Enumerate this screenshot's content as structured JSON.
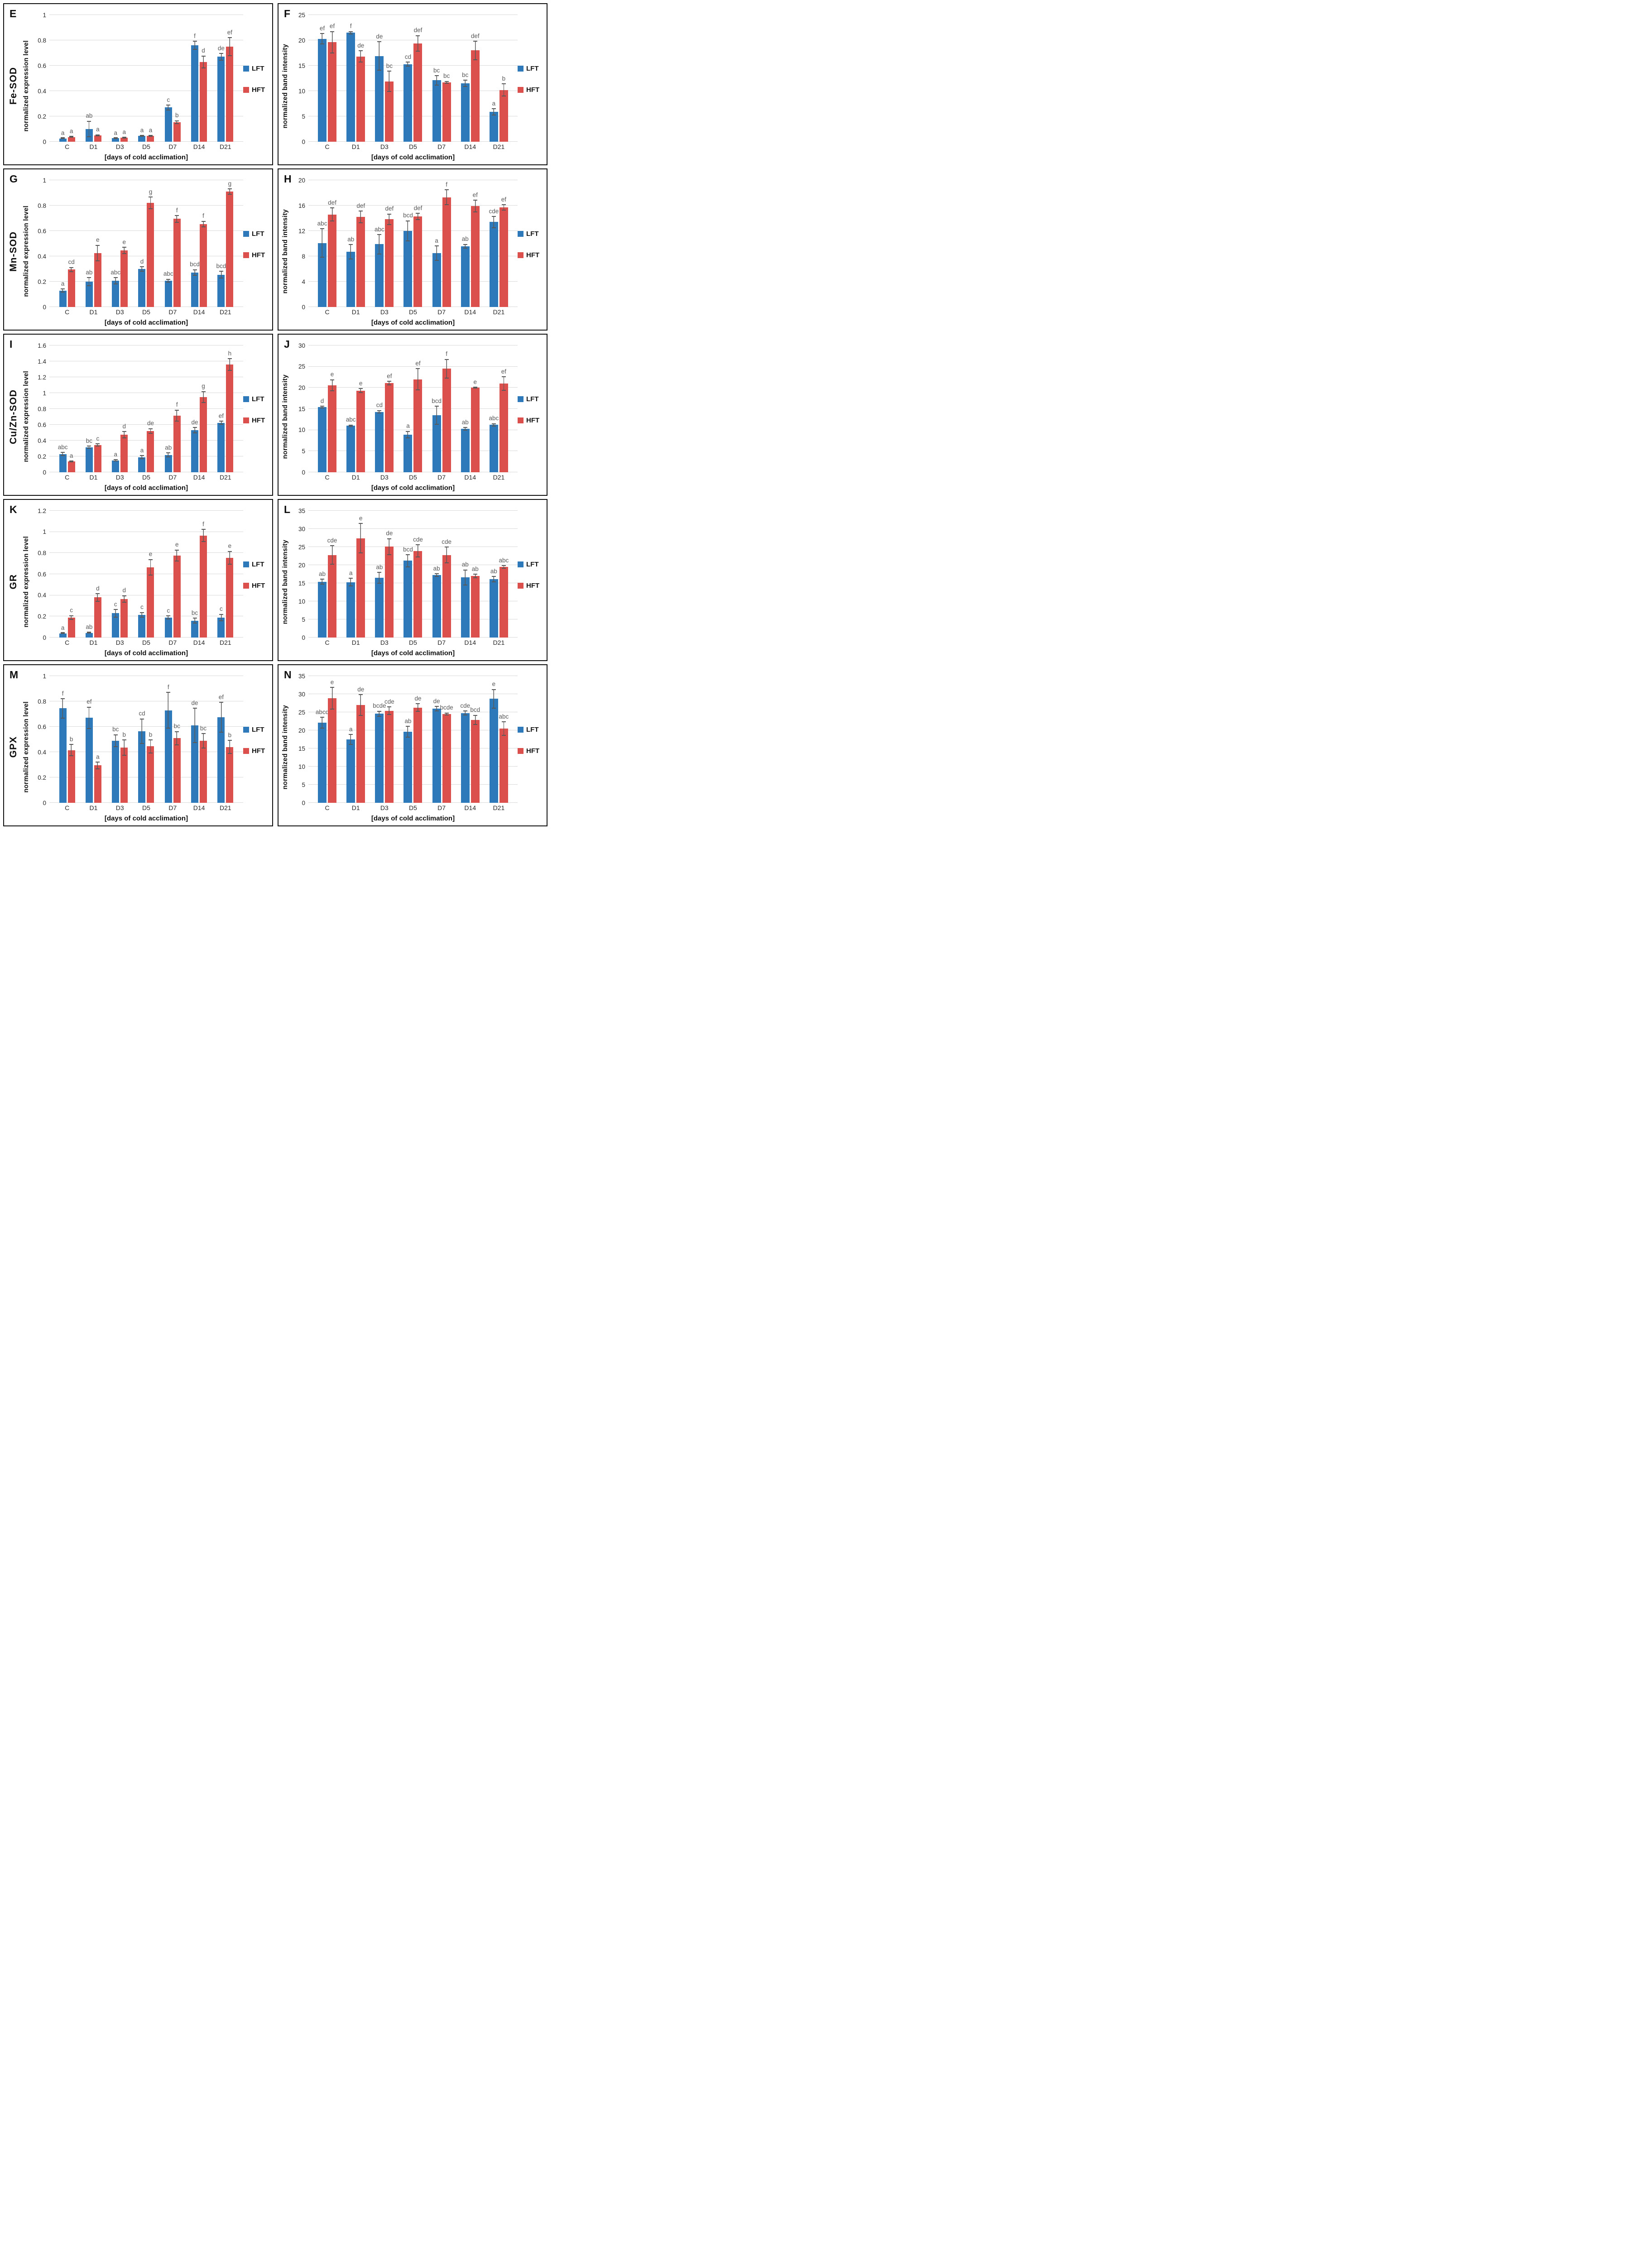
{
  "figure": {
    "x_axis_label": "[days of cold acclimation]",
    "categories": [
      "C",
      "D1",
      "D3",
      "D5",
      "D7",
      "D14",
      "D21"
    ],
    "legend": {
      "lft_label": "LFT",
      "hft_label": "HFT"
    },
    "colors": {
      "lft": "#2E79B9",
      "hft": "#DB4F4C",
      "error_bar": "#595959",
      "gridline": "#D9D9D9",
      "sig_letter": "#595959",
      "tick_text": "#262626"
    }
  },
  "chart_data": [
    {
      "panel": "E",
      "row_label": "Fe-SOD",
      "side": "left",
      "type": "bar",
      "ylabel": "normalized expression level",
      "xlabel": "[days of cold acclimation]",
      "categories": [
        "C",
        "D1",
        "D3",
        "D5",
        "D7",
        "D14",
        "D21"
      ],
      "ylim": [
        0,
        1
      ],
      "yticks": [
        "0",
        "0.2",
        "0.4",
        "0.6",
        "0.8",
        "1"
      ],
      "grid": true,
      "legend_position": "right",
      "series": [
        {
          "name": "LFT",
          "values": [
            0.025,
            0.1,
            0.027,
            0.046,
            0.27,
            0.76,
            0.67
          ],
          "errors": [
            0.005,
            0.065,
            0.005,
            0.005,
            0.022,
            0.035,
            0.03
          ],
          "letters": [
            "a",
            "ab",
            "a",
            "a",
            "c",
            "f",
            "de"
          ]
        },
        {
          "name": "HFT",
          "values": [
            0.037,
            0.05,
            0.032,
            0.046,
            0.155,
            0.63,
            0.75
          ],
          "errors": [
            0.006,
            0.008,
            0.007,
            0.006,
            0.014,
            0.05,
            0.075
          ],
          "letters": [
            "a",
            "a",
            "a",
            "a",
            "b",
            "d",
            "ef"
          ]
        }
      ]
    },
    {
      "panel": "F",
      "row_label": null,
      "side": "right",
      "type": "bar",
      "ylabel": "normalized band intensity",
      "xlabel": "[days of cold acclimation]",
      "categories": [
        "C",
        "D1",
        "D3",
        "D5",
        "D7",
        "D14",
        "D21"
      ],
      "ylim": [
        0,
        25
      ],
      "yticks": [
        "0",
        "5",
        "10",
        "15",
        "20",
        "25"
      ],
      "grid": true,
      "legend_position": "right",
      "series": [
        {
          "name": "LFT",
          "values": [
            20.3,
            21.5,
            16.9,
            15.3,
            12.1,
            11.5,
            5.9
          ],
          "errors": [
            1.1,
            0.3,
            2.9,
            0.5,
            1.0,
            0.7,
            0.7
          ],
          "letters": [
            "ef",
            "f",
            "de",
            "cd",
            "bc",
            "bc",
            "a"
          ]
        },
        {
          "name": "HFT",
          "values": [
            19.6,
            16.8,
            11.9,
            19.4,
            11.7,
            18.0,
            10.2
          ],
          "errors": [
            2.2,
            1.2,
            2.1,
            1.6,
            0.3,
            1.9,
            1.3
          ],
          "letters": [
            "ef",
            "de",
            "bc",
            "def",
            "bc",
            "def",
            "b"
          ]
        }
      ]
    },
    {
      "panel": "G",
      "row_label": "Mn-SOD",
      "side": "left",
      "type": "bar",
      "ylabel": "normalized expression level",
      "xlabel": "[days of cold acclimation]",
      "categories": [
        "C",
        "D1",
        "D3",
        "D5",
        "D7",
        "D14",
        "D21"
      ],
      "ylim": [
        0,
        1
      ],
      "yticks": [
        "0",
        "0.2",
        "0.4",
        "0.6",
        "0.8",
        "1"
      ],
      "grid": true,
      "legend_position": "right",
      "series": [
        {
          "name": "LFT",
          "values": [
            0.13,
            0.2,
            0.207,
            0.3,
            0.207,
            0.273,
            0.255
          ],
          "errors": [
            0.015,
            0.035,
            0.028,
            0.02,
            0.015,
            0.025,
            0.03
          ],
          "letters": [
            "a",
            "ab",
            "abc",
            "d",
            "abc",
            "bcd",
            "bcd"
          ]
        },
        {
          "name": "HFT",
          "values": [
            0.295,
            0.425,
            0.447,
            0.82,
            0.695,
            0.655,
            0.91
          ],
          "errors": [
            0.02,
            0.065,
            0.028,
            0.05,
            0.03,
            0.025,
            0.025
          ],
          "letters": [
            "cd",
            "e",
            "e",
            "g",
            "f",
            "f",
            "g"
          ]
        }
      ]
    },
    {
      "panel": "H",
      "row_label": null,
      "side": "right",
      "type": "bar",
      "ylabel": "normalized band intensity",
      "xlabel": "[days of cold acclimation]",
      "categories": [
        "C",
        "D1",
        "D3",
        "D5",
        "D7",
        "D14",
        "D21"
      ],
      "ylim": [
        0,
        20
      ],
      "yticks": [
        "0",
        "4",
        "8",
        "12",
        "16",
        "20"
      ],
      "grid": true,
      "legend_position": "right",
      "series": [
        {
          "name": "LFT",
          "values": [
            10.1,
            8.7,
            9.9,
            12.0,
            8.5,
            9.6,
            13.4
          ],
          "errors": [
            2.3,
            1.2,
            1.6,
            1.65,
            1.2,
            0.35,
            0.95
          ],
          "letters": [
            "abc",
            "ab",
            "abc",
            "bcd",
            "a",
            "ab",
            "cde"
          ]
        },
        {
          "name": "HFT",
          "values": [
            14.6,
            14.2,
            13.85,
            14.3,
            17.3,
            15.9,
            15.7
          ],
          "errors": [
            1.1,
            1.0,
            0.9,
            0.55,
            1.25,
            1.0,
            0.5
          ],
          "letters": [
            "def",
            "def",
            "def",
            "def",
            "f",
            "ef",
            "ef"
          ]
        }
      ]
    },
    {
      "panel": "I",
      "row_label": "Cu/Zn-SOD",
      "side": "left",
      "type": "bar",
      "ylabel": "normalized expression level",
      "xlabel": "[days of cold acclimation]",
      "categories": [
        "C",
        "D1",
        "D3",
        "D5",
        "D7",
        "D14",
        "D21"
      ],
      "ylim": [
        0,
        1.6
      ],
      "yticks": [
        "0",
        "0.2",
        "0.4",
        "0.6",
        "0.8",
        "1",
        "1.2",
        "1.4",
        "1.6"
      ],
      "grid": true,
      "legend_position": "right",
      "series": [
        {
          "name": "LFT",
          "values": [
            0.23,
            0.315,
            0.15,
            0.19,
            0.22,
            0.53,
            0.625
          ],
          "errors": [
            0.025,
            0.02,
            0.015,
            0.025,
            0.03,
            0.04,
            0.025
          ],
          "letters": [
            "abc",
            "bc",
            "a",
            "a",
            "ab",
            "de",
            "ef"
          ]
        },
        {
          "name": "HFT",
          "values": [
            0.135,
            0.345,
            0.475,
            0.52,
            0.715,
            0.95,
            1.36
          ],
          "errors": [
            0.012,
            0.02,
            0.045,
            0.035,
            0.075,
            0.075,
            0.08
          ],
          "letters": [
            "a",
            "c",
            "d",
            "de",
            "f",
            "g",
            "h"
          ]
        }
      ]
    },
    {
      "panel": "J",
      "row_label": null,
      "side": "right",
      "type": "bar",
      "ylabel": "normalized band intensity",
      "xlabel": "[days of cold acclimation]",
      "categories": [
        "C",
        "D1",
        "D3",
        "D5",
        "D7",
        "D14",
        "D21"
      ],
      "ylim": [
        0,
        30
      ],
      "yticks": [
        "0",
        "5",
        "10",
        "15",
        "20",
        "25",
        "30"
      ],
      "grid": true,
      "legend_position": "right",
      "series": [
        {
          "name": "LFT",
          "values": [
            15.4,
            11.0,
            14.3,
            8.9,
            13.5,
            10.3,
            11.2
          ],
          "errors": [
            0.3,
            0.3,
            0.4,
            0.9,
            2.2,
            0.4,
            0.4
          ],
          "letters": [
            "d",
            "abc",
            "cd",
            "a",
            "bcd",
            "ab",
            "abc"
          ]
        },
        {
          "name": "HFT",
          "values": [
            20.6,
            19.3,
            21.1,
            22.0,
            24.5,
            20.0,
            21.0
          ],
          "errors": [
            1.4,
            0.6,
            0.5,
            2.6,
            2.3,
            0.2,
            1.7
          ],
          "letters": [
            "e",
            "e",
            "ef",
            "ef",
            "f",
            "e",
            "ef"
          ]
        }
      ]
    },
    {
      "panel": "K",
      "row_label": "GR",
      "side": "left",
      "type": "bar",
      "ylabel": "normalized expression level",
      "xlabel": "[days of cold acclimation]",
      "categories": [
        "C",
        "D1",
        "D3",
        "D5",
        "D7",
        "D14",
        "D21"
      ],
      "ylim": [
        0,
        1.2
      ],
      "yticks": [
        "0",
        "0.2",
        "0.4",
        "0.6",
        "0.8",
        "1",
        "1.2"
      ],
      "grid": true,
      "legend_position": "right",
      "series": [
        {
          "name": "LFT",
          "values": [
            0.04,
            0.045,
            0.23,
            0.215,
            0.19,
            0.16,
            0.19
          ],
          "errors": [
            0.005,
            0.008,
            0.04,
            0.027,
            0.02,
            0.027,
            0.035
          ],
          "letters": [
            "a",
            "ab",
            "c",
            "c",
            "c",
            "bc",
            "c"
          ]
        },
        {
          "name": "HFT",
          "values": [
            0.19,
            0.38,
            0.365,
            0.665,
            0.775,
            0.965,
            0.755
          ],
          "errors": [
            0.022,
            0.04,
            0.035,
            0.078,
            0.057,
            0.062,
            0.065
          ],
          "letters": [
            "c",
            "d",
            "d",
            "e",
            "e",
            "f",
            "e"
          ]
        }
      ]
    },
    {
      "panel": "L",
      "row_label": null,
      "side": "right",
      "type": "bar",
      "ylabel": "normalized band intensity",
      "xlabel": "[days of cold acclimation]",
      "categories": [
        "C",
        "D1",
        "D3",
        "D5",
        "D7",
        "D14",
        "D21"
      ],
      "ylim": [
        0,
        35
      ],
      "yticks": [
        "0",
        "5",
        "10",
        "15",
        "20",
        "25",
        "30",
        "35"
      ],
      "grid": true,
      "legend_position": "right",
      "series": [
        {
          "name": "LFT",
          "values": [
            15.4,
            15.3,
            16.5,
            21.2,
            17.2,
            16.6,
            16.1
          ],
          "errors": [
            0.8,
            1.2,
            1.6,
            1.8,
            0.5,
            2.2,
            0.9
          ],
          "letters": [
            "ab",
            "a",
            "ab",
            "bcd",
            "ab",
            "ab",
            "ab"
          ]
        },
        {
          "name": "HFT",
          "values": [
            22.8,
            27.4,
            25.1,
            23.9,
            22.8,
            17.0,
            19.5
          ],
          "errors": [
            2.7,
            4.2,
            2.3,
            1.8,
            2.3,
            0.6,
            0.5
          ],
          "letters": [
            "cde",
            "e",
            "de",
            "cde",
            "cde",
            "ab",
            "abc"
          ]
        }
      ]
    },
    {
      "panel": "M",
      "row_label": "GPX",
      "side": "left",
      "type": "bar",
      "ylabel": "normalized expression level",
      "xlabel": "[days of cold acclimation]",
      "categories": [
        "C",
        "D1",
        "D3",
        "D5",
        "D7",
        "D14",
        "D21"
      ],
      "ylim": [
        0,
        1
      ],
      "yticks": [
        "0",
        "0.2",
        "0.4",
        "0.6",
        "0.8",
        "1"
      ],
      "grid": true,
      "legend_position": "right",
      "series": [
        {
          "name": "LFT",
          "values": [
            0.745,
            0.67,
            0.49,
            0.565,
            0.73,
            0.61,
            0.675
          ],
          "errors": [
            0.08,
            0.088,
            0.05,
            0.1,
            0.145,
            0.14,
            0.12
          ],
          "letters": [
            "f",
            "ef",
            "bc",
            "cd",
            "f",
            "de",
            "ef"
          ]
        },
        {
          "name": "HFT",
          "values": [
            0.415,
            0.295,
            0.435,
            0.445,
            0.51,
            0.49,
            0.44
          ],
          "errors": [
            0.048,
            0.03,
            0.065,
            0.055,
            0.055,
            0.06,
            0.055
          ],
          "letters": [
            "b",
            "a",
            "b",
            "b",
            "bc",
            "bc",
            "b"
          ]
        }
      ]
    },
    {
      "panel": "N",
      "row_label": null,
      "side": "right",
      "type": "bar",
      "ylabel": "normalized band intensity",
      "xlabel": "[days of cold acclimation]",
      "categories": [
        "C",
        "D1",
        "D3",
        "D5",
        "D7",
        "D14",
        "D21"
      ],
      "ylim": [
        0,
        35
      ],
      "yticks": [
        "0",
        "5",
        "10",
        "15",
        "20",
        "25",
        "30",
        "35"
      ],
      "grid": true,
      "legend_position": "right",
      "series": [
        {
          "name": "LFT",
          "values": [
            22.1,
            17.5,
            24.6,
            19.6,
            26.0,
            24.8,
            28.7
          ],
          "errors": [
            1.6,
            1.5,
            0.8,
            1.6,
            0.7,
            0.7,
            2.7
          ],
          "letters": [
            "abcd",
            "a",
            "bcde",
            "ab",
            "de",
            "cde",
            "e"
          ]
        },
        {
          "name": "HFT",
          "values": [
            28.9,
            27.0,
            25.4,
            26.3,
            24.5,
            22.9,
            20.5
          ],
          "errors": [
            3.1,
            3.0,
            1.2,
            1.2,
            0.4,
            1.4,
            2.0
          ],
          "letters": [
            "e",
            "de",
            "cde",
            "de",
            "bcde",
            "bcd",
            "abc"
          ]
        }
      ]
    }
  ]
}
